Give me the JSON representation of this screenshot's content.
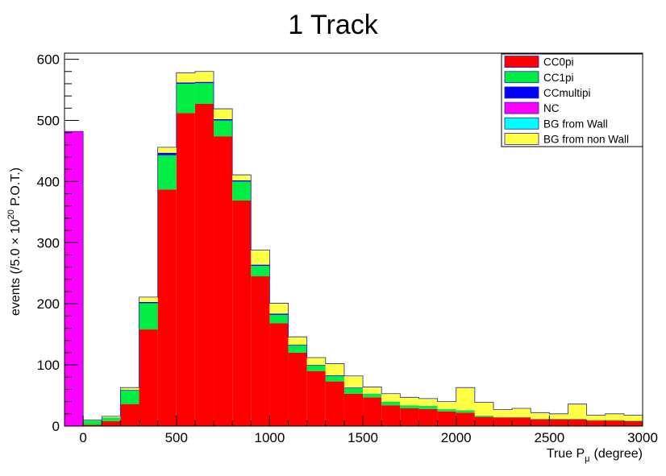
{
  "chart_data": {
    "type": "bar",
    "stacked": true,
    "title": "1 Track",
    "xlabel_main": "True P",
    "xlabel_sub": "μ",
    "xlabel_unit": "(degree)",
    "ylabel_pre": "events (/5.0 × 10",
    "ylabel_sup": "20",
    "ylabel_post": " P.O.T.)",
    "xlim": [
      -100,
      3000
    ],
    "ylim": [
      0,
      610
    ],
    "xticks": [
      0,
      500,
      1000,
      1500,
      2000,
      2500,
      3000
    ],
    "yticks": [
      0,
      100,
      200,
      300,
      400,
      500,
      600
    ],
    "bin_width": 100,
    "bin_starts": [
      -100,
      0,
      100,
      200,
      300,
      400,
      500,
      600,
      700,
      800,
      900,
      1000,
      1100,
      1200,
      1300,
      1400,
      1500,
      1600,
      1700,
      1800,
      1900,
      2000,
      2100,
      2200,
      2300,
      2400,
      2500,
      2600,
      2700,
      2800,
      2900
    ],
    "series": [
      {
        "name": "CC0pi",
        "color": "#ff0000",
        "values": [
          0,
          2,
          8,
          36,
          158,
          387,
          512,
          527,
          474,
          369,
          245,
          168,
          120,
          90,
          73,
          53,
          47,
          34,
          29,
          28,
          24,
          22,
          15,
          14,
          14,
          11,
          11,
          11,
          9,
          9,
          8
        ]
      },
      {
        "name": "CC1pi",
        "color": "#00ee44",
        "values": [
          0,
          7,
          6,
          22,
          43,
          56,
          48,
          34,
          26,
          31,
          17,
          14,
          12,
          9,
          9,
          9,
          6,
          6,
          5,
          5,
          4,
          4,
          2,
          1,
          1,
          1,
          1,
          1,
          1,
          1,
          1
        ]
      },
      {
        "name": "CCmultipi",
        "color": "#0000ff",
        "values": [
          0,
          0,
          0,
          1,
          2,
          4,
          2,
          2,
          2,
          2,
          2,
          2,
          1,
          1,
          1,
          1,
          0,
          0,
          0,
          0,
          0,
          0,
          0,
          0,
          0,
          0,
          0,
          0,
          0,
          0,
          0
        ]
      },
      {
        "name": "NC",
        "color": "#ff00ff",
        "values": [
          482,
          0,
          0,
          0,
          0,
          0,
          0,
          0,
          0,
          0,
          0,
          0,
          0,
          0,
          0,
          0,
          0,
          0,
          0,
          0,
          0,
          0,
          0,
          0,
          0,
          0,
          0,
          0,
          0,
          0,
          0
        ]
      },
      {
        "name": "BG from Wall",
        "color": "#00ffff",
        "values": [
          0,
          0,
          0,
          0,
          0,
          0,
          0,
          0,
          0,
          0,
          0,
          0,
          0,
          0,
          0,
          0,
          0,
          0,
          0,
          0,
          0,
          0,
          0,
          0,
          0,
          0,
          0,
          0,
          0,
          0,
          0
        ]
      },
      {
        "name": "BG from non Wall",
        "color": "#ffff44",
        "values": [
          0,
          1,
          2,
          4,
          8,
          9,
          16,
          17,
          17,
          9,
          24,
          17,
          13,
          12,
          19,
          19,
          11,
          13,
          13,
          12,
          12,
          37,
          22,
          12,
          14,
          10,
          8,
          24,
          8,
          10,
          9
        ]
      }
    ],
    "legend_position": "top-right",
    "grid": false
  }
}
